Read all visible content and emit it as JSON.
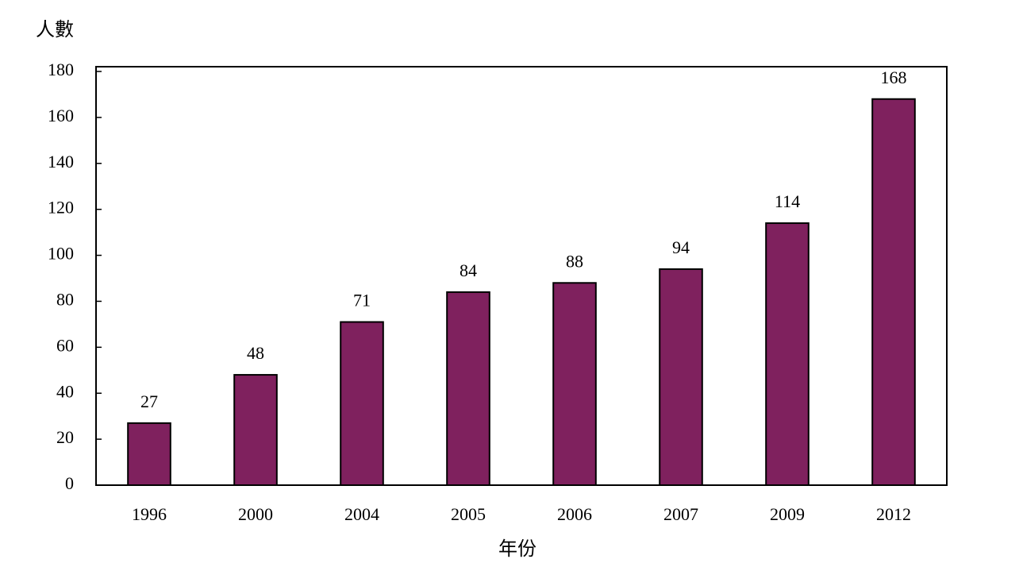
{
  "chart_data": {
    "type": "bar",
    "y_label": "人數",
    "x_label": "年份",
    "categories": [
      "1996",
      "2000",
      "2004",
      "2005",
      "2006",
      "2007",
      "2009",
      "2012"
    ],
    "values": [
      27,
      48,
      71,
      84,
      88,
      94,
      114,
      168
    ],
    "color": "#7f215e",
    "ylim": [
      0,
      180
    ],
    "yticks": [
      0,
      20,
      40,
      60,
      80,
      100,
      120,
      140,
      160,
      180
    ],
    "grid": false
  }
}
